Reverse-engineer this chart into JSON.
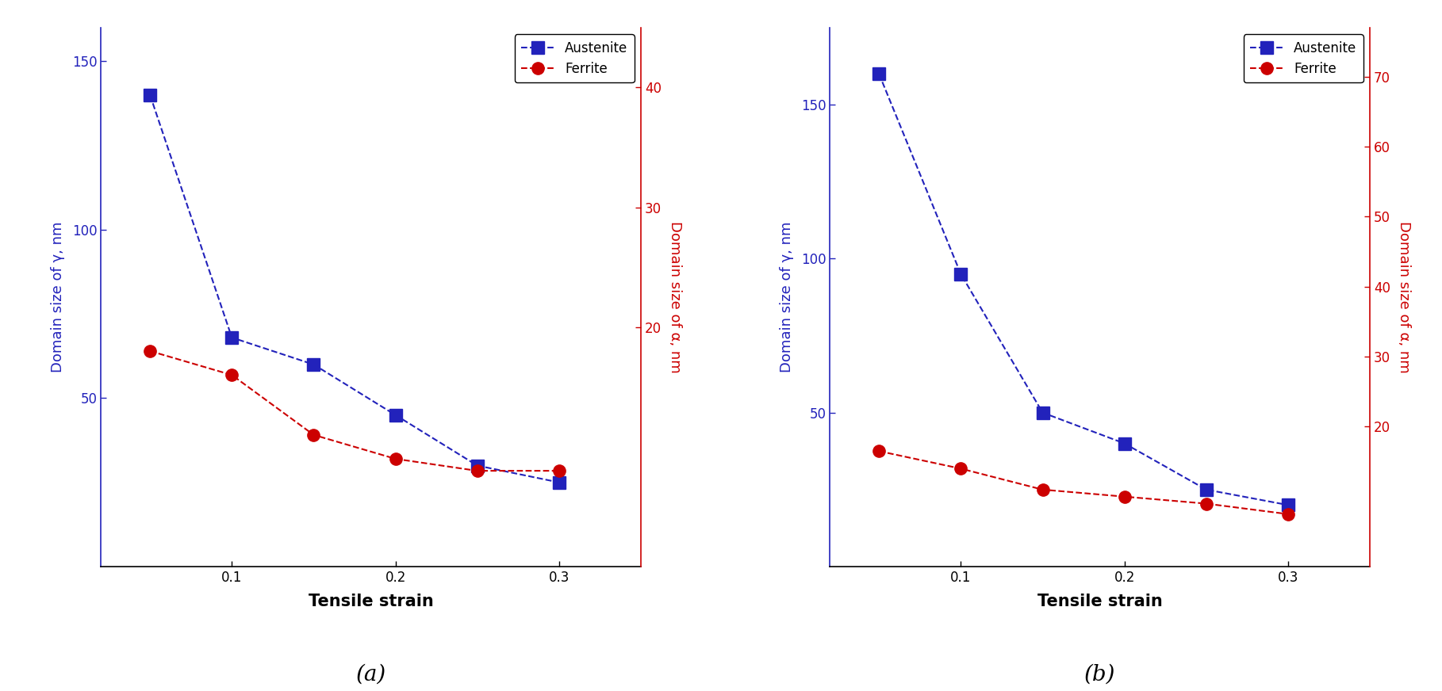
{
  "panel_a": {
    "x": [
      0.05,
      0.1,
      0.15,
      0.2,
      0.25,
      0.3
    ],
    "austenite_y": [
      140,
      68,
      60,
      45,
      30,
      25
    ],
    "ferrite_y_right": [
      18.0,
      16.0,
      11.0,
      9.0,
      8.0,
      8.0
    ],
    "left_ylim": [
      0,
      160
    ],
    "right_ylim": [
      0,
      45
    ],
    "left_yticks": [
      50,
      100,
      150
    ],
    "right_yticks": [
      20,
      30,
      40
    ],
    "xlim": [
      0.02,
      0.35
    ],
    "xticks": [
      0.1,
      0.2,
      0.3
    ],
    "label": "(a)"
  },
  "panel_b": {
    "x": [
      0.05,
      0.1,
      0.15,
      0.2,
      0.25,
      0.3
    ],
    "austenite_y": [
      160,
      95,
      50,
      40,
      25,
      20
    ],
    "ferrite_y_right": [
      16.5,
      14.0,
      11.0,
      10.0,
      9.0,
      7.5
    ],
    "left_ylim": [
      0,
      175
    ],
    "right_ylim": [
      0,
      77
    ],
    "left_yticks": [
      50,
      100,
      150
    ],
    "right_yticks": [
      20,
      30,
      40,
      50,
      60,
      70
    ],
    "xlim": [
      0.02,
      0.35
    ],
    "xticks": [
      0.1,
      0.2,
      0.3
    ],
    "label": "(b)"
  },
  "blue_color": "#2222bb",
  "red_color": "#cc0000",
  "left_ylabel": "Domain size of γ, nm",
  "right_ylabel": "Domain size of α, nm",
  "xlabel": "Tensile strain",
  "legend_austenite": "Austenite",
  "legend_ferrite": "Ferrite",
  "marker_square": "s",
  "marker_circle": "o",
  "marker_size": 11,
  "linewidth": 1.5,
  "font_size_label": 13,
  "font_size_xlabel": 15,
  "font_size_tick": 12,
  "font_size_legend": 12,
  "font_size_panel_label": 20
}
